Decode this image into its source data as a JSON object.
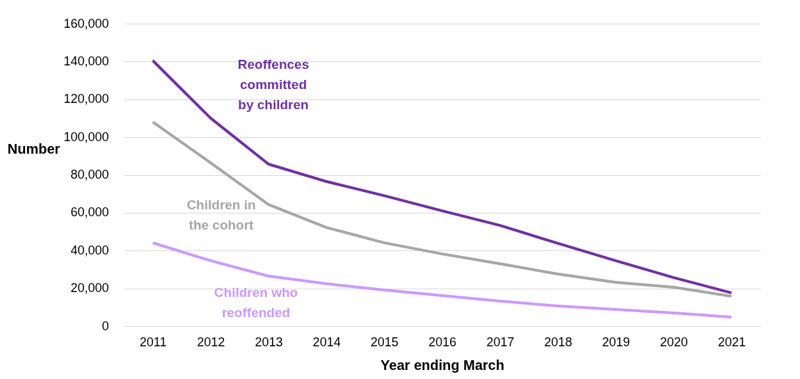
{
  "chart_data": {
    "type": "line",
    "xlabel": "Year ending March",
    "ylabel": "Number",
    "categories": [
      "2011",
      "2012",
      "2013",
      "2014",
      "2015",
      "2016",
      "2017",
      "2018",
      "2019",
      "2020",
      "2021"
    ],
    "series": [
      {
        "name": "Reoffences committed by children",
        "color": "#7030a0",
        "values": [
          140500,
          110000,
          85700,
          76500,
          69000,
          61000,
          53300,
          43800,
          34600,
          25700,
          17600
        ]
      },
      {
        "name": "Children in the cohort",
        "color": "#a6a6a6",
        "values": [
          108000,
          86400,
          64300,
          52200,
          44100,
          38200,
          33000,
          27600,
          23200,
          20600,
          15800
        ]
      },
      {
        "name": "Children who reoffended",
        "color": "#cc99ff",
        "values": [
          44100,
          34600,
          26500,
          22400,
          19100,
          16200,
          13200,
          10700,
          8800,
          7000,
          4800
        ]
      }
    ],
    "ylim": [
      0,
      160000
    ],
    "yticks": [
      0,
      {
        "value": 20000,
        "label": "20,000"
      },
      {
        "value": 40000,
        "label": "40,000"
      },
      {
        "value": 60000,
        "label": "60,000"
      },
      {
        "value": 80000,
        "label": "80,000"
      },
      {
        "value": 100000,
        "label": "100,000"
      },
      {
        "value": 120000,
        "label": "120,000"
      },
      {
        "value": 140000,
        "label": "140,000"
      },
      {
        "value": 160000,
        "label": "160,000"
      }
    ],
    "grid": "y",
    "legend": false,
    "marker": "none",
    "line_style": "solid"
  }
}
